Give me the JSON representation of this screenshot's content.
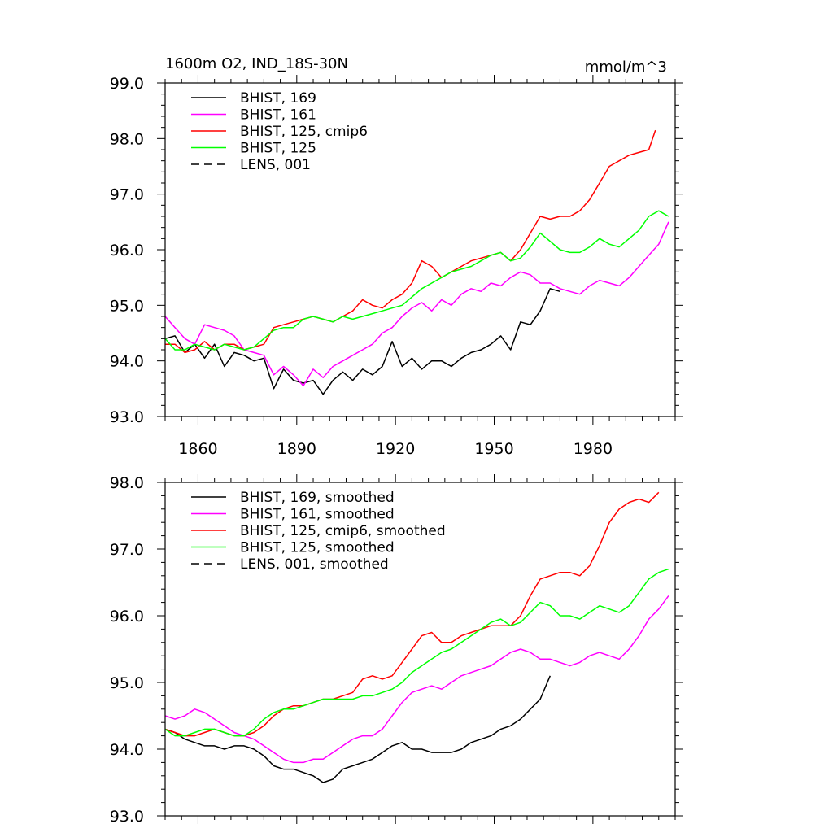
{
  "panels": [
    {
      "title_left": "1600m O2, IND_18S-30N",
      "title_right": "mmol/m^3",
      "xlim": [
        1850,
        2005
      ],
      "ylim": [
        93.0,
        99.0
      ],
      "xticks": [
        1860,
        1890,
        1920,
        1950,
        1980
      ],
      "xtick_labels": [
        "1860",
        "1890",
        "1920",
        "1950",
        "1980"
      ],
      "show_xtick_labels": true,
      "yticks": [
        93.0,
        94.0,
        95.0,
        96.0,
        97.0,
        98.0,
        99.0
      ],
      "ytick_labels": [
        "93.0",
        "94.0",
        "95.0",
        "96.0",
        "97.0",
        "98.0",
        "99.0"
      ],
      "legend": [
        {
          "label": "BHIST, 169",
          "color": "#000000",
          "dash": false
        },
        {
          "label": "BHIST, 161",
          "color": "#ff00ff",
          "dash": false
        },
        {
          "label": "BHIST, 125, cmip6",
          "color": "#ff0000",
          "dash": false
        },
        {
          "label": "BHIST, 125",
          "color": "#00ff00",
          "dash": false
        },
        {
          "label": "LENS, 001",
          "color": "#000000",
          "dash": true
        }
      ]
    },
    {
      "title_left": "",
      "title_right": "",
      "xlim": [
        1850,
        2005
      ],
      "ylim": [
        93.0,
        98.0
      ],
      "xticks": [
        1860,
        1890,
        1920,
        1950,
        1980
      ],
      "xtick_labels": [],
      "show_xtick_labels": false,
      "yticks": [
        93.0,
        94.0,
        95.0,
        96.0,
        97.0,
        98.0
      ],
      "ytick_labels": [
        "93.0",
        "94.0",
        "95.0",
        "96.0",
        "97.0",
        "98.0"
      ],
      "legend": [
        {
          "label": "BHIST, 169, smoothed",
          "color": "#000000",
          "dash": false
        },
        {
          "label": "BHIST, 161, smoothed",
          "color": "#ff00ff",
          "dash": false
        },
        {
          "label": "BHIST, 125, cmip6, smoothed",
          "color": "#ff0000",
          "dash": false
        },
        {
          "label": "BHIST, 125, smoothed",
          "color": "#00ff00",
          "dash": false
        },
        {
          "label": "LENS, 001, smoothed",
          "color": "#000000",
          "dash": true
        }
      ]
    }
  ],
  "chart_data": [
    {
      "type": "line",
      "title": "1600m O2, IND_18S-30N",
      "units": "mmol/m^3",
      "xlim": [
        1850,
        2005
      ],
      "ylim": [
        93.0,
        99.0
      ],
      "grid": false,
      "legend_position": "top-left",
      "series": [
        {
          "name": "BHIST, 169",
          "color": "#000000",
          "x": [
            1850,
            1853,
            1856,
            1859,
            1862,
            1865,
            1868,
            1871,
            1874,
            1877,
            1880,
            1883,
            1886,
            1889,
            1892,
            1895,
            1898,
            1901,
            1904,
            1907,
            1910,
            1913,
            1916,
            1919,
            1922,
            1925,
            1928,
            1931,
            1934,
            1937,
            1940,
            1943,
            1946,
            1949,
            1952,
            1955,
            1958,
            1961,
            1964,
            1967,
            1970
          ],
          "y": [
            94.4,
            94.45,
            94.15,
            94.3,
            94.05,
            94.3,
            93.9,
            94.15,
            94.1,
            94.0,
            94.05,
            93.5,
            93.85,
            93.65,
            93.6,
            93.65,
            93.4,
            93.65,
            93.8,
            93.65,
            93.85,
            93.75,
            93.9,
            94.35,
            93.9,
            94.05,
            93.85,
            94.0,
            94.0,
            93.9,
            94.05,
            94.15,
            94.2,
            94.3,
            94.45,
            94.2,
            94.7,
            94.65,
            94.9,
            95.3,
            95.25
          ]
        },
        {
          "name": "BHIST, 161",
          "color": "#ff00ff",
          "x": [
            1850,
            1853,
            1856,
            1859,
            1862,
            1865,
            1868,
            1871,
            1874,
            1877,
            1880,
            1883,
            1886,
            1889,
            1892,
            1895,
            1898,
            1901,
            1904,
            1907,
            1910,
            1913,
            1916,
            1919,
            1922,
            1925,
            1928,
            1931,
            1934,
            1937,
            1940,
            1943,
            1946,
            1949,
            1952,
            1955,
            1958,
            1961,
            1964,
            1967,
            1970,
            1973,
            1976,
            1979,
            1982,
            1985,
            1988,
            1991,
            1994,
            1997,
            2000,
            2003
          ],
          "y": [
            94.8,
            94.6,
            94.4,
            94.3,
            94.65,
            94.6,
            94.55,
            94.45,
            94.2,
            94.15,
            94.1,
            93.75,
            93.9,
            93.75,
            93.55,
            93.85,
            93.7,
            93.9,
            94.0,
            94.1,
            94.2,
            94.3,
            94.5,
            94.6,
            94.8,
            94.95,
            95.05,
            94.9,
            95.1,
            95.0,
            95.2,
            95.3,
            95.25,
            95.4,
            95.35,
            95.5,
            95.6,
            95.55,
            95.4,
            95.4,
            95.3,
            95.25,
            95.2,
            95.35,
            95.45,
            95.4,
            95.35,
            95.5,
            95.7,
            95.9,
            96.1,
            96.5
          ]
        },
        {
          "name": "BHIST, 125, cmip6",
          "color": "#ff0000",
          "x": [
            1850,
            1853,
            1856,
            1859,
            1862,
            1865,
            1868,
            1871,
            1874,
            1877,
            1880,
            1883,
            1886,
            1889,
            1892,
            1895,
            1898,
            1901,
            1904,
            1907,
            1910,
            1913,
            1916,
            1919,
            1922,
            1925,
            1928,
            1931,
            1934,
            1937,
            1940,
            1943,
            1946,
            1949,
            1952,
            1955,
            1958,
            1961,
            1964,
            1967,
            1970,
            1973,
            1976,
            1979,
            1982,
            1985,
            1988,
            1991,
            1994,
            1997,
            1999
          ],
          "y": [
            94.3,
            94.3,
            94.15,
            94.2,
            94.35,
            94.2,
            94.3,
            94.3,
            94.2,
            94.25,
            94.3,
            94.6,
            94.65,
            94.7,
            94.75,
            94.8,
            94.75,
            94.7,
            94.8,
            94.9,
            95.1,
            95.0,
            94.95,
            95.1,
            95.2,
            95.4,
            95.8,
            95.7,
            95.5,
            95.6,
            95.7,
            95.8,
            95.85,
            95.9,
            95.95,
            95.8,
            96.0,
            96.3,
            96.6,
            96.55,
            96.6,
            96.6,
            96.7,
            96.9,
            97.2,
            97.5,
            97.6,
            97.7,
            97.75,
            97.8,
            98.15
          ]
        },
        {
          "name": "BHIST, 125",
          "color": "#00ff00",
          "x": [
            1850,
            1853,
            1856,
            1859,
            1862,
            1865,
            1868,
            1871,
            1874,
            1877,
            1880,
            1883,
            1886,
            1889,
            1892,
            1895,
            1898,
            1901,
            1904,
            1907,
            1910,
            1913,
            1916,
            1919,
            1922,
            1925,
            1928,
            1931,
            1934,
            1937,
            1940,
            1943,
            1946,
            1949,
            1952,
            1955,
            1958,
            1961,
            1964,
            1967,
            1970,
            1973,
            1976,
            1979,
            1982,
            1985,
            1988,
            1991,
            1994,
            1997,
            2000,
            2003
          ],
          "y": [
            94.4,
            94.2,
            94.2,
            94.3,
            94.25,
            94.2,
            94.3,
            94.25,
            94.2,
            94.25,
            94.4,
            94.55,
            94.6,
            94.6,
            94.75,
            94.8,
            94.75,
            94.7,
            94.8,
            94.75,
            94.8,
            94.85,
            94.9,
            94.95,
            95.0,
            95.15,
            95.3,
            95.4,
            95.5,
            95.6,
            95.65,
            95.7,
            95.8,
            95.9,
            95.95,
            95.8,
            95.85,
            96.05,
            96.3,
            96.15,
            96.0,
            95.95,
            95.95,
            96.05,
            96.2,
            96.1,
            96.05,
            96.2,
            96.35,
            96.6,
            96.7,
            96.6
          ]
        },
        {
          "name": "LENS, 001",
          "color": "#000000",
          "dash": true,
          "x": [],
          "y": []
        }
      ]
    },
    {
      "type": "line",
      "xlim": [
        1850,
        2005
      ],
      "ylim": [
        93.0,
        98.0
      ],
      "grid": false,
      "legend_position": "top-left",
      "series": [
        {
          "name": "BHIST, 169, smoothed",
          "color": "#000000",
          "x": [
            1850,
            1853,
            1856,
            1859,
            1862,
            1865,
            1868,
            1871,
            1874,
            1877,
            1880,
            1883,
            1886,
            1889,
            1892,
            1895,
            1898,
            1901,
            1904,
            1907,
            1910,
            1913,
            1916,
            1919,
            1922,
            1925,
            1928,
            1931,
            1934,
            1937,
            1940,
            1943,
            1946,
            1949,
            1952,
            1955,
            1958,
            1961,
            1964,
            1967
          ],
          "y": [
            94.3,
            94.25,
            94.15,
            94.1,
            94.05,
            94.05,
            94.0,
            94.05,
            94.05,
            94.0,
            93.9,
            93.75,
            93.7,
            93.7,
            93.65,
            93.6,
            93.5,
            93.55,
            93.7,
            93.75,
            93.8,
            93.85,
            93.95,
            94.05,
            94.1,
            94.0,
            94.0,
            93.95,
            93.95,
            93.95,
            94.0,
            94.1,
            94.15,
            94.2,
            94.3,
            94.35,
            94.45,
            94.6,
            94.75,
            95.1
          ]
        },
        {
          "name": "BHIST, 161, smoothed",
          "color": "#ff00ff",
          "x": [
            1850,
            1853,
            1856,
            1859,
            1862,
            1865,
            1868,
            1871,
            1874,
            1877,
            1880,
            1883,
            1886,
            1889,
            1892,
            1895,
            1898,
            1901,
            1904,
            1907,
            1910,
            1913,
            1916,
            1919,
            1922,
            1925,
            1928,
            1931,
            1934,
            1937,
            1940,
            1943,
            1946,
            1949,
            1952,
            1955,
            1958,
            1961,
            1964,
            1967,
            1970,
            1973,
            1976,
            1979,
            1982,
            1985,
            1988,
            1991,
            1994,
            1997,
            2000,
            2003
          ],
          "y": [
            94.5,
            94.45,
            94.5,
            94.6,
            94.55,
            94.45,
            94.35,
            94.25,
            94.2,
            94.15,
            94.05,
            93.95,
            93.85,
            93.8,
            93.8,
            93.85,
            93.85,
            93.95,
            94.05,
            94.15,
            94.2,
            94.2,
            94.3,
            94.5,
            94.7,
            94.85,
            94.9,
            94.95,
            94.9,
            95.0,
            95.1,
            95.15,
            95.2,
            95.25,
            95.35,
            95.45,
            95.5,
            95.45,
            95.35,
            95.35,
            95.3,
            95.25,
            95.3,
            95.4,
            95.45,
            95.4,
            95.35,
            95.5,
            95.7,
            95.95,
            96.1,
            96.3
          ]
        },
        {
          "name": "BHIST, 125, cmip6, smoothed",
          "color": "#ff0000",
          "x": [
            1850,
            1853,
            1856,
            1859,
            1862,
            1865,
            1868,
            1871,
            1874,
            1877,
            1880,
            1883,
            1886,
            1889,
            1892,
            1895,
            1898,
            1901,
            1904,
            1907,
            1910,
            1913,
            1916,
            1919,
            1922,
            1925,
            1928,
            1931,
            1934,
            1937,
            1940,
            1943,
            1946,
            1949,
            1952,
            1955,
            1958,
            1961,
            1964,
            1967,
            1970,
            1973,
            1976,
            1979,
            1982,
            1985,
            1988,
            1991,
            1994,
            1997,
            2000
          ],
          "y": [
            94.3,
            94.25,
            94.2,
            94.2,
            94.25,
            94.3,
            94.25,
            94.2,
            94.2,
            94.25,
            94.35,
            94.5,
            94.6,
            94.65,
            94.65,
            94.7,
            94.75,
            94.75,
            94.8,
            94.85,
            95.05,
            95.1,
            95.05,
            95.1,
            95.3,
            95.5,
            95.7,
            95.75,
            95.6,
            95.6,
            95.7,
            95.75,
            95.8,
            95.85,
            95.85,
            95.85,
            96.0,
            96.3,
            96.55,
            96.6,
            96.65,
            96.65,
            96.6,
            96.75,
            97.05,
            97.4,
            97.6,
            97.7,
            97.75,
            97.7,
            97.85
          ]
        },
        {
          "name": "BHIST, 125, smoothed",
          "color": "#00ff00",
          "x": [
            1850,
            1853,
            1856,
            1859,
            1862,
            1865,
            1868,
            1871,
            1874,
            1877,
            1880,
            1883,
            1886,
            1889,
            1892,
            1895,
            1898,
            1901,
            1904,
            1907,
            1910,
            1913,
            1916,
            1919,
            1922,
            1925,
            1928,
            1931,
            1934,
            1937,
            1940,
            1943,
            1946,
            1949,
            1952,
            1955,
            1958,
            1961,
            1964,
            1967,
            1970,
            1973,
            1976,
            1979,
            1982,
            1985,
            1988,
            1991,
            1994,
            1997,
            2000,
            2003
          ],
          "y": [
            94.3,
            94.2,
            94.2,
            94.25,
            94.3,
            94.3,
            94.25,
            94.2,
            94.2,
            94.3,
            94.45,
            94.55,
            94.6,
            94.6,
            94.65,
            94.7,
            94.75,
            94.75,
            94.75,
            94.75,
            94.8,
            94.8,
            94.85,
            94.9,
            95.0,
            95.15,
            95.25,
            95.35,
            95.45,
            95.5,
            95.6,
            95.7,
            95.8,
            95.9,
            95.95,
            95.85,
            95.9,
            96.05,
            96.2,
            96.15,
            96.0,
            96.0,
            95.95,
            96.05,
            96.15,
            96.1,
            96.05,
            96.15,
            96.35,
            96.55,
            96.65,
            96.7
          ]
        },
        {
          "name": "LENS, 001, smoothed",
          "color": "#000000",
          "dash": true,
          "x": [],
          "y": []
        }
      ]
    }
  ]
}
